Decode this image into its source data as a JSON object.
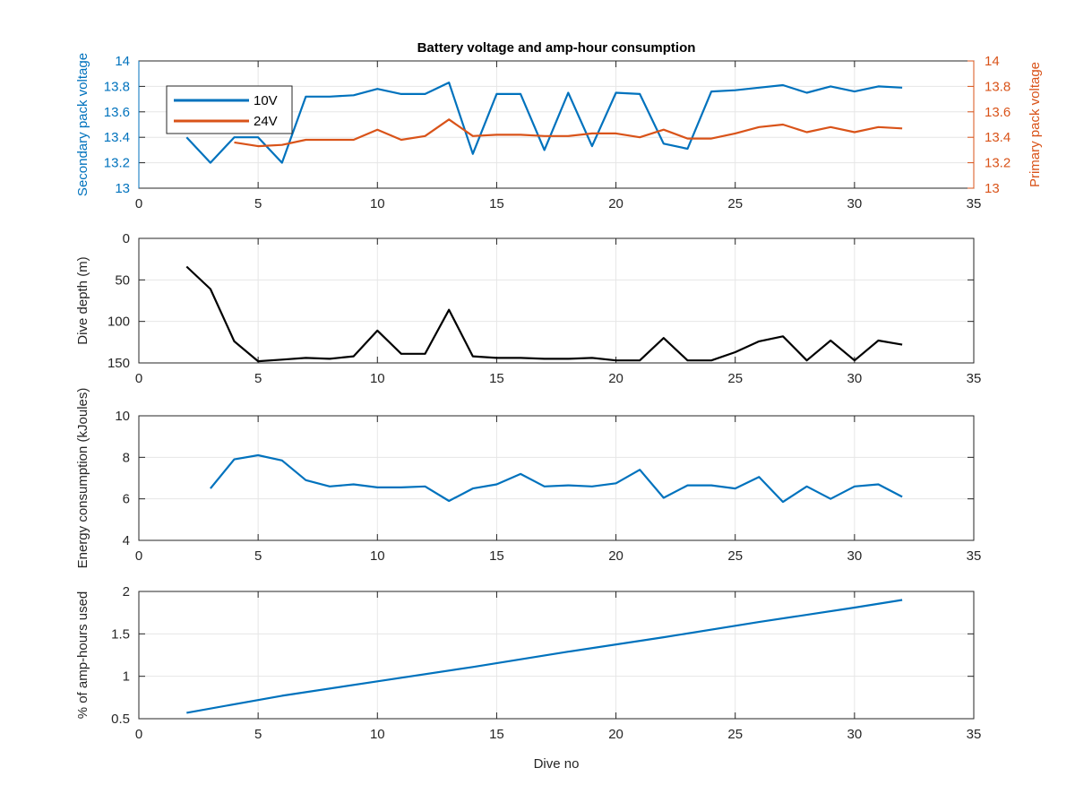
{
  "colors": {
    "blue": "#0072BD",
    "orange": "#D95319",
    "black": "#000000",
    "grid": "#e6e6e6",
    "axis": "#262626"
  },
  "chart_data": [
    {
      "type": "line",
      "title": "Battery voltage and amp-hour consumption",
      "xlabel": "",
      "ylabel_left": "Secondary pack voltage",
      "ylabel_right": "Primary pack voltage",
      "xlim": [
        0,
        35
      ],
      "ylim_left": [
        13,
        14
      ],
      "ylim_right": [
        13,
        14
      ],
      "x_ticks": [
        "0",
        "5",
        "10",
        "15",
        "20",
        "25",
        "30",
        "35"
      ],
      "y_ticks_left": [
        "13",
        "13.2",
        "13.4",
        "13.6",
        "13.8",
        "14"
      ],
      "y_ticks_right": [
        "13",
        "13.2",
        "13.4",
        "13.6",
        "13.8",
        "14"
      ],
      "grid": true,
      "legend_position": "top-left",
      "series": [
        {
          "name": "10V",
          "axis": "left",
          "color": "blue",
          "x": [
            2,
            3,
            4,
            5,
            6,
            7,
            8,
            9,
            10,
            11,
            12,
            13,
            14,
            15,
            16,
            17,
            18,
            19,
            20,
            21,
            22,
            23,
            24,
            25,
            26,
            27,
            28,
            29,
            30,
            31,
            32
          ],
          "y": [
            13.4,
            13.2,
            13.4,
            13.4,
            13.2,
            13.72,
            13.72,
            13.73,
            13.78,
            13.74,
            13.74,
            13.83,
            13.27,
            13.74,
            13.74,
            13.3,
            13.75,
            13.33,
            13.75,
            13.74,
            13.35,
            13.31,
            13.76,
            13.77,
            13.79,
            13.81,
            13.75,
            13.8,
            13.76,
            13.8,
            13.79
          ]
        },
        {
          "name": "24V",
          "axis": "right",
          "color": "orange",
          "x": [
            4,
            5,
            6,
            7,
            8,
            9,
            10,
            11,
            12,
            13,
            14,
            15,
            16,
            17,
            18,
            19,
            20,
            21,
            22,
            23,
            24,
            25,
            26,
            27,
            28,
            29,
            30,
            31,
            32
          ],
          "y": [
            13.36,
            13.33,
            13.34,
            13.38,
            13.38,
            13.38,
            13.46,
            13.38,
            13.41,
            13.54,
            13.41,
            13.42,
            13.42,
            13.41,
            13.41,
            13.43,
            13.43,
            13.4,
            13.46,
            13.39,
            13.39,
            13.43,
            13.48,
            13.5,
            13.44,
            13.48,
            13.44,
            13.48,
            13.47
          ]
        }
      ]
    },
    {
      "type": "line",
      "title": "",
      "xlabel": "",
      "ylabel": "Dive depth (m)",
      "xlim": [
        0,
        35
      ],
      "ylim": [
        0,
        150
      ],
      "y_reversed": true,
      "x_ticks": [
        "0",
        "5",
        "10",
        "15",
        "20",
        "25",
        "30",
        "35"
      ],
      "y_ticks": [
        "0",
        "50",
        "100",
        "150"
      ],
      "grid": true,
      "series": [
        {
          "color": "black",
          "x": [
            2,
            3,
            4,
            5,
            6,
            7,
            8,
            9,
            10,
            11,
            12,
            13,
            14,
            15,
            16,
            17,
            18,
            19,
            20,
            21,
            22,
            23,
            24,
            25,
            26,
            27,
            28,
            29,
            30,
            31,
            32
          ],
          "y": [
            34,
            61,
            124,
            148,
            146,
            144,
            145,
            142,
            111,
            139,
            139,
            86,
            142,
            144,
            144,
            145,
            145,
            144,
            147,
            147,
            120,
            147,
            147,
            137,
            124,
            118,
            147,
            123,
            147,
            123,
            128
          ]
        }
      ]
    },
    {
      "type": "line",
      "title": "",
      "xlabel": "",
      "ylabel": "Energy consumption (kJoules)",
      "xlim": [
        0,
        35
      ],
      "ylim": [
        4,
        10
      ],
      "x_ticks": [
        "0",
        "5",
        "10",
        "15",
        "20",
        "25",
        "30",
        "35"
      ],
      "y_ticks": [
        "4",
        "6",
        "8",
        "10"
      ],
      "grid": true,
      "series": [
        {
          "color": "blue",
          "x": [
            3,
            4,
            5,
            6,
            7,
            8,
            9,
            10,
            11,
            12,
            13,
            14,
            15,
            16,
            17,
            18,
            19,
            20,
            21,
            22,
            23,
            24,
            25,
            26,
            27,
            28,
            29,
            30,
            31,
            32
          ],
          "y": [
            6.5,
            7.9,
            8.1,
            7.85,
            6.9,
            6.6,
            6.7,
            6.55,
            6.55,
            6.6,
            5.9,
            6.5,
            6.7,
            7.2,
            6.6,
            6.65,
            6.6,
            6.75,
            7.4,
            6.05,
            6.65,
            6.65,
            6.5,
            7.05,
            5.85,
            6.6,
            6.0,
            6.6,
            6.7,
            6.1
          ]
        }
      ]
    },
    {
      "type": "line",
      "title": "",
      "xlabel": "Dive no",
      "ylabel": "% of amp-hours used",
      "xlim": [
        0,
        35
      ],
      "ylim": [
        0.5,
        2
      ],
      "x_ticks": [
        "0",
        "5",
        "10",
        "15",
        "20",
        "25",
        "30",
        "35"
      ],
      "y_ticks": [
        "0.5",
        "1",
        "1.5",
        "2"
      ],
      "grid": true,
      "series": [
        {
          "color": "blue",
          "x": [
            2,
            6,
            10,
            14,
            18,
            22,
            26,
            30,
            32
          ],
          "y": [
            0.57,
            0.77,
            0.94,
            1.11,
            1.29,
            1.46,
            1.64,
            1.81,
            1.9
          ]
        }
      ]
    }
  ]
}
